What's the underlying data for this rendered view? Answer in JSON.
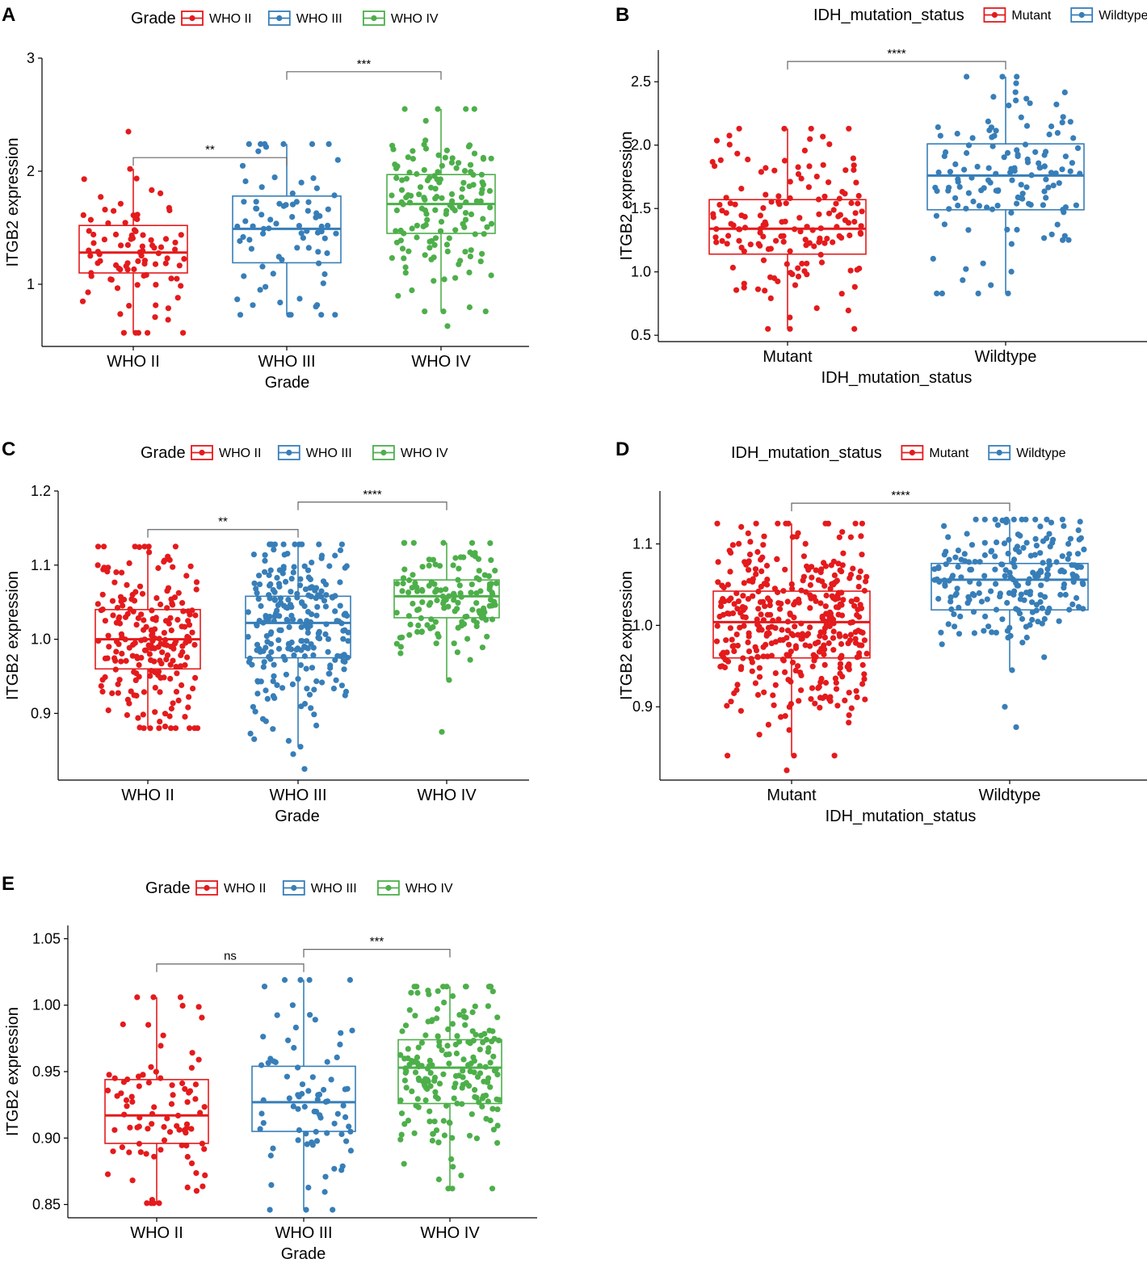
{
  "figure": {
    "y_label": "ITGB2 expression",
    "colors": {
      "red": "#E41A1C",
      "blue": "#377EB8",
      "green": "#4DAF4A",
      "axis": "#000000",
      "bracket": "#666666"
    }
  },
  "chart_data": [
    {
      "type": "boxplot",
      "panel_label": "A",
      "legend_title": "Grade",
      "xlabel": "Grade",
      "ylabel": "ITGB2 expression",
      "categories": [
        "WHO II",
        "WHO III",
        "WHO IV"
      ],
      "legend_entries": [
        "WHO II",
        "WHO III",
        "WHO IV"
      ],
      "ylim": [
        0.45,
        3.0
      ],
      "yticks": [
        1,
        2,
        3
      ],
      "ytick_labels": [
        "1",
        "2",
        "3"
      ],
      "boxes": [
        {
          "category": "WHO II",
          "color": "red",
          "lower_whisker": 0.57,
          "q1": 1.1,
          "median": 1.28,
          "q3": 1.52,
          "upper_whisker": 2.02,
          "n_points": 90
        },
        {
          "category": "WHO III",
          "color": "blue",
          "lower_whisker": 0.73,
          "q1": 1.19,
          "median": 1.49,
          "q3": 1.78,
          "upper_whisker": 2.24,
          "n_points": 80
        },
        {
          "category": "WHO IV",
          "color": "green",
          "lower_whisker": 0.76,
          "q1": 1.45,
          "median": 1.71,
          "q3": 1.97,
          "upper_whisker": 2.55,
          "n_points": 150
        }
      ],
      "outliers": [
        {
          "category": "WHO II",
          "value": 2.35
        },
        {
          "category": "WHO IV",
          "value": 0.63
        }
      ],
      "comparisons": [
        {
          "from": "WHO II",
          "to": "WHO III",
          "label": "**",
          "y": 2.12
        },
        {
          "from": "WHO III",
          "to": "WHO IV",
          "label": "***",
          "y": 2.88
        }
      ]
    },
    {
      "type": "boxplot",
      "panel_label": "B",
      "legend_title": "IDH_mutation_status",
      "xlabel": "IDH_mutation_status",
      "ylabel": "ITGB2 expression",
      "categories": [
        "Mutant",
        "Wildtype"
      ],
      "legend_entries": [
        "Mutant",
        "Wildtype"
      ],
      "ylim": [
        0.45,
        2.75
      ],
      "yticks": [
        0.5,
        1.0,
        1.5,
        2.0,
        2.5
      ],
      "ytick_labels": [
        "0.5",
        "1.0",
        "1.5",
        "2.0",
        "2.5"
      ],
      "boxes": [
        {
          "category": "Mutant",
          "color": "red",
          "lower_whisker": 0.55,
          "q1": 1.14,
          "median": 1.34,
          "q3": 1.57,
          "upper_whisker": 2.13,
          "n_points": 160
        },
        {
          "category": "Wildtype",
          "color": "blue",
          "lower_whisker": 0.83,
          "q1": 1.49,
          "median": 1.76,
          "q3": 2.01,
          "upper_whisker": 2.54,
          "n_points": 140
        }
      ],
      "outliers": [],
      "comparisons": [
        {
          "from": "Mutant",
          "to": "Wildtype",
          "label": "****",
          "y": 2.66
        }
      ]
    },
    {
      "type": "boxplot",
      "panel_label": "C",
      "legend_title": "Grade",
      "xlabel": "Grade",
      "ylabel": "ITGB2 expression",
      "categories": [
        "WHO II",
        "WHO III",
        "WHO IV"
      ],
      "legend_entries": [
        "WHO II",
        "WHO III",
        "WHO IV"
      ],
      "ylim": [
        0.81,
        1.2
      ],
      "yticks": [
        0.9,
        1.0,
        1.1,
        1.2
      ],
      "ytick_labels": [
        "0.9",
        "1.0",
        "1.1",
        "1.2"
      ],
      "boxes": [
        {
          "category": "WHO II",
          "color": "red",
          "lower_whisker": 0.88,
          "q1": 0.96,
          "median": 1.0,
          "q3": 1.04,
          "upper_whisker": 1.125,
          "n_points": 220
        },
        {
          "category": "WHO III",
          "color": "blue",
          "lower_whisker": 0.855,
          "q1": 0.975,
          "median": 1.022,
          "q3": 1.058,
          "upper_whisker": 1.128,
          "n_points": 250
        },
        {
          "category": "WHO IV",
          "color": "green",
          "lower_whisker": 0.945,
          "q1": 1.029,
          "median": 1.058,
          "q3": 1.08,
          "upper_whisker": 1.13,
          "n_points": 140
        }
      ],
      "outliers": [
        {
          "category": "WHO III",
          "value": 0.845
        },
        {
          "category": "WHO III",
          "value": 0.825
        },
        {
          "category": "WHO IV",
          "value": 0.875
        }
      ],
      "comparisons": [
        {
          "from": "WHO II",
          "to": "WHO III",
          "label": "**",
          "y": 1.148
        },
        {
          "from": "WHO III",
          "to": "WHO IV",
          "label": "****",
          "y": 1.185
        }
      ]
    },
    {
      "type": "boxplot",
      "panel_label": "D",
      "legend_title": "IDH_mutation_status",
      "xlabel": "IDH_mutation_status",
      "ylabel": "ITGB2 expression",
      "categories": [
        "Mutant",
        "Wildtype"
      ],
      "legend_entries": [
        "Mutant",
        "Wildtype"
      ],
      "ylim": [
        0.81,
        1.165
      ],
      "yticks": [
        0.9,
        1.0,
        1.1
      ],
      "ytick_labels": [
        "0.9",
        "1.0",
        "1.1"
      ],
      "boxes": [
        {
          "category": "Mutant",
          "color": "red",
          "lower_whisker": 0.84,
          "q1": 0.96,
          "median": 1.004,
          "q3": 1.042,
          "upper_whisker": 1.125,
          "n_points": 400
        },
        {
          "category": "Wildtype",
          "color": "blue",
          "lower_whisker": 0.945,
          "q1": 1.019,
          "median": 1.056,
          "q3": 1.076,
          "upper_whisker": 1.13,
          "n_points": 220
        }
      ],
      "outliers": [
        {
          "category": "Mutant",
          "value": 0.822
        },
        {
          "category": "Wildtype",
          "value": 0.875
        },
        {
          "category": "Wildtype",
          "value": 0.9
        }
      ],
      "comparisons": [
        {
          "from": "Mutant",
          "to": "Wildtype",
          "label": "****",
          "y": 1.15
        }
      ]
    },
    {
      "type": "boxplot",
      "panel_label": "E",
      "legend_title": "Grade",
      "xlabel": "Grade",
      "ylabel": "ITGB2 expression",
      "categories": [
        "WHO II",
        "WHO III",
        "WHO IV"
      ],
      "legend_entries": [
        "WHO II",
        "WHO III",
        "WHO IV"
      ],
      "ylim": [
        0.84,
        1.06
      ],
      "yticks": [
        0.85,
        0.9,
        0.95,
        1.0,
        1.05
      ],
      "ytick_labels": [
        "0.85",
        "0.90",
        "0.95",
        "1.00",
        "1.05"
      ],
      "boxes": [
        {
          "category": "WHO II",
          "color": "red",
          "lower_whisker": 0.851,
          "q1": 0.896,
          "median": 0.917,
          "q3": 0.944,
          "upper_whisker": 1.006,
          "n_points": 90
        },
        {
          "category": "WHO III",
          "color": "blue",
          "lower_whisker": 0.846,
          "q1": 0.905,
          "median": 0.927,
          "q3": 0.954,
          "upper_whisker": 1.019,
          "n_points": 80
        },
        {
          "category": "WHO IV",
          "color": "green",
          "lower_whisker": 0.862,
          "q1": 0.926,
          "median": 0.953,
          "q3": 0.974,
          "upper_whisker": 1.014,
          "n_points": 200
        }
      ],
      "outliers": [],
      "comparisons": [
        {
          "from": "WHO II",
          "to": "WHO III",
          "label": "ns",
          "y": 1.031
        },
        {
          "from": "WHO III",
          "to": "WHO IV",
          "label": "***",
          "y": 1.042
        }
      ]
    }
  ]
}
